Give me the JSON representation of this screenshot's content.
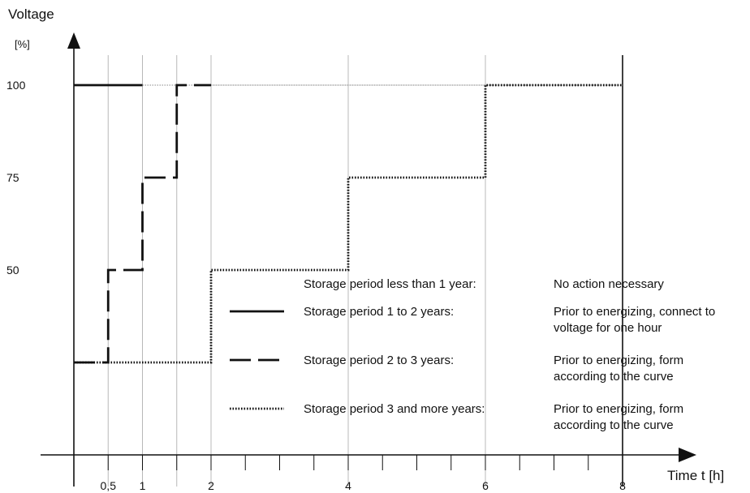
{
  "chart_data": {
    "type": "line",
    "title": "",
    "ylabel": "Voltage",
    "yunit": "[%]",
    "xlabel": "Time t [h]",
    "xlim": [
      0,
      9
    ],
    "ylim": [
      0,
      110
    ],
    "x_ticks": [
      0.5,
      1,
      1.5,
      2,
      2.5,
      3,
      3.5,
      4,
      4.5,
      5,
      5.5,
      6,
      6.5,
      7,
      7.5,
      8
    ],
    "x_tick_labels": [
      {
        "x": 0.5,
        "label": "0,5"
      },
      {
        "x": 1,
        "label": "1"
      },
      {
        "x": 2,
        "label": "2"
      },
      {
        "x": 4,
        "label": "4"
      },
      {
        "x": 6,
        "label": "6"
      },
      {
        "x": 8,
        "label": "8"
      }
    ],
    "y_tick_labels": [
      {
        "y": 50,
        "label": "50"
      },
      {
        "y": 75,
        "label": "75"
      },
      {
        "y": 100,
        "label": "100"
      }
    ],
    "reference_vlines": [
      0.5,
      1,
      1.5,
      2,
      4,
      6
    ],
    "end_line_x": 8,
    "series": [
      {
        "name": "Storage period 1 to 2 years:",
        "style": "solid",
        "points": [
          [
            0,
            100
          ],
          [
            1,
            100
          ]
        ],
        "continuation": [
          [
            1,
            100
          ],
          [
            8,
            100
          ]
        ]
      },
      {
        "name": "Storage period 2 to 3 years:",
        "style": "dashed",
        "points": [
          [
            0,
            25
          ],
          [
            0.5,
            25
          ],
          [
            0.5,
            50
          ],
          [
            1,
            50
          ],
          [
            1,
            75
          ],
          [
            1.5,
            75
          ],
          [
            1.5,
            100
          ],
          [
            2,
            100
          ]
        ],
        "continuation": [
          [
            2,
            100
          ],
          [
            8,
            100
          ]
        ]
      },
      {
        "name": "Storage period 3 and more years:",
        "style": "dotted",
        "points": [
          [
            0,
            25
          ],
          [
            2,
            25
          ],
          [
            2,
            50
          ],
          [
            4,
            50
          ],
          [
            4,
            75
          ],
          [
            6,
            75
          ],
          [
            6,
            100
          ],
          [
            8,
            100
          ]
        ]
      }
    ],
    "legend": [
      {
        "style": "none",
        "label": "Storage period less than 1 year:",
        "action": [
          "No action necessary"
        ]
      },
      {
        "style": "solid",
        "label": "Storage period 1 to 2 years:",
        "action": [
          "Prior to energizing, connect to",
          "voltage for one hour"
        ]
      },
      {
        "style": "dashed",
        "label": "Storage period 2 to 3 years:",
        "action": [
          "Prior to energizing, form",
          "according to the curve"
        ]
      },
      {
        "style": "dotted",
        "label": "Storage period 3 and more years:",
        "action": [
          "Prior to energizing, form",
          "according to the curve"
        ]
      }
    ]
  }
}
